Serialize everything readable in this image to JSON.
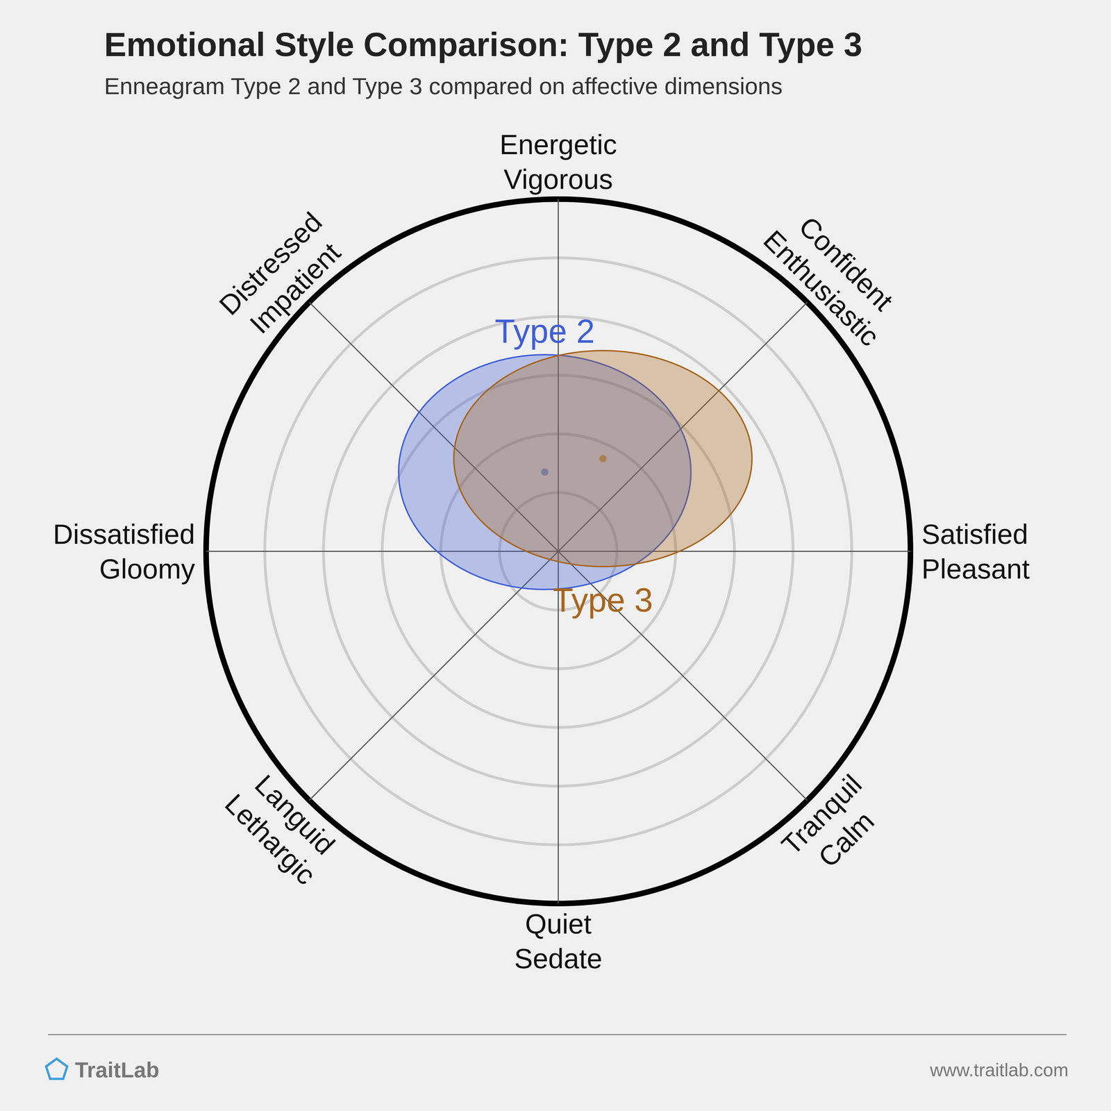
{
  "chart_data": {
    "type": "circumplex",
    "title": "Emotional Style Comparison: Type 2 and Type 3",
    "subtitle": "Enneagram Type 2 and Type 3 compared on affective dimensions",
    "dimensions": [
      [
        "Energetic",
        "Vigorous"
      ],
      [
        "Confident",
        "Enthusiastic"
      ],
      [
        "Satisfied",
        "Pleasant"
      ],
      [
        "Tranquil",
        "Calm"
      ],
      [
        "Quiet",
        "Sedate"
      ],
      [
        "Languid",
        "Lethargic"
      ],
      [
        "Dissatisfied",
        "Gloomy"
      ],
      [
        "Distressed",
        "Impatient"
      ]
    ],
    "xlim": [
      -6,
      6
    ],
    "ylim": [
      -6,
      6
    ],
    "rings": [
      1,
      2,
      3,
      4,
      5,
      6
    ],
    "tick_labels": false,
    "series": [
      {
        "name": "Type 2",
        "color": "#3f5fd6",
        "center": [
          -0.23,
          1.35
        ],
        "radii": [
          2.49,
          2.0
        ]
      },
      {
        "name": "Type 3",
        "color": "#a8651c",
        "center": [
          0.76,
          1.58
        ],
        "radii": [
          2.54,
          1.84
        ]
      }
    ],
    "footer": {
      "brand": "TraitLab",
      "url": "www.traitlab.com"
    }
  }
}
